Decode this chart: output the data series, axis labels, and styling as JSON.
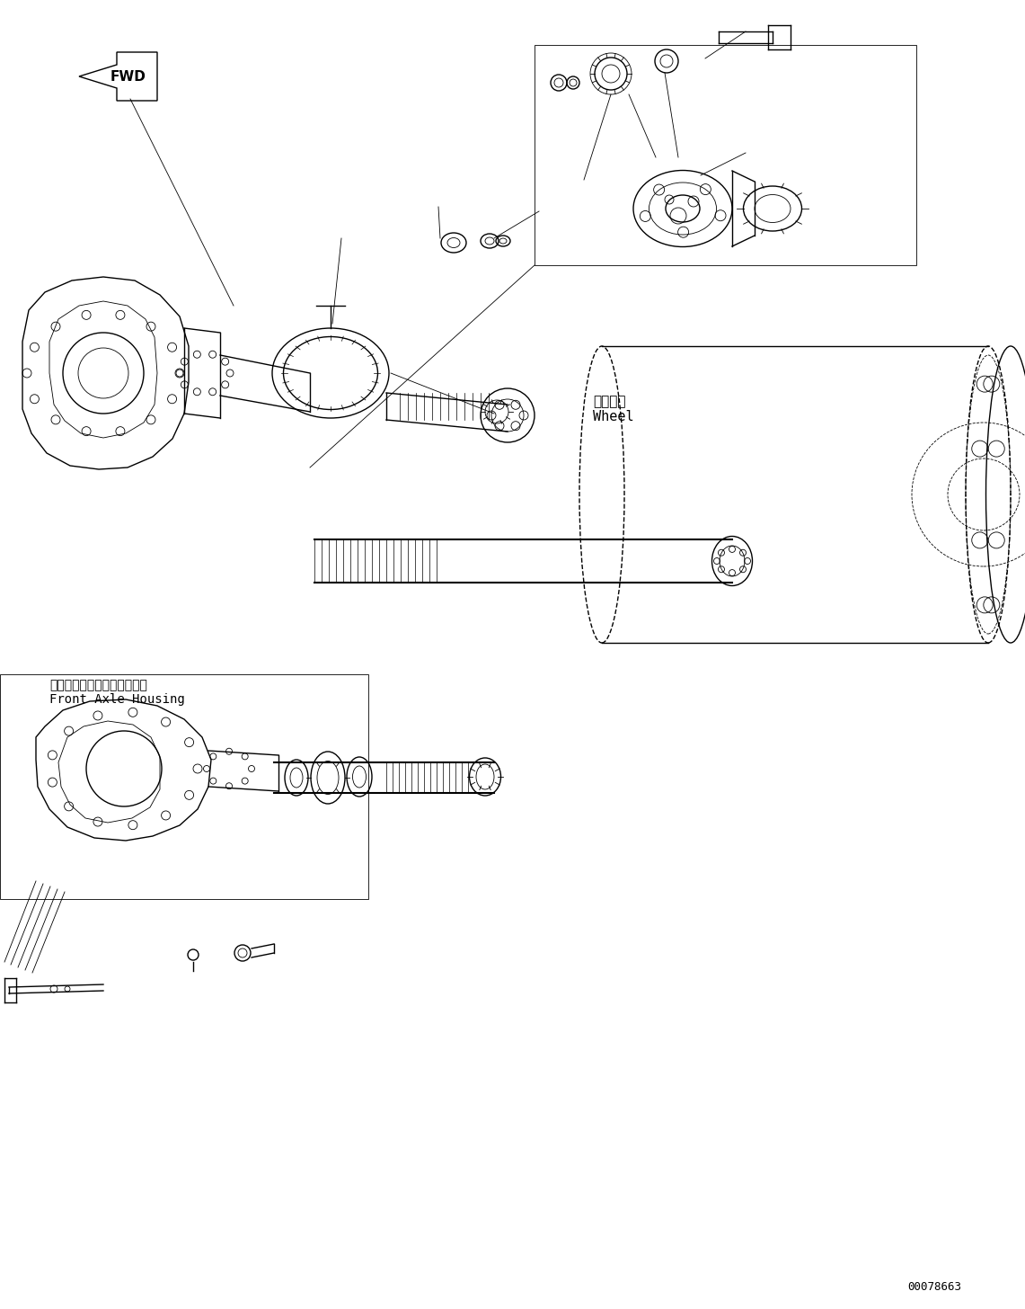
{
  "background_color": "#ffffff",
  "part_number": "00078663",
  "lw_main": 1.0,
  "lw_thin": 0.6,
  "lw_thick": 1.5,
  "wheel_label": "ホイール\nWheel",
  "housing_label": "フロントアクスルハウジング\nFront Axle Housing"
}
